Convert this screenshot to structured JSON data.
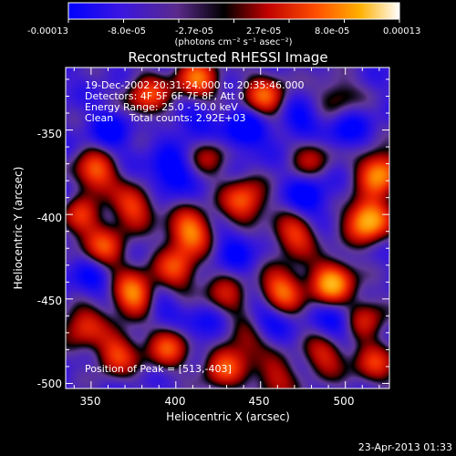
{
  "chart_data": {
    "type": "heatmap",
    "title": "Reconstructed RHESSI Image",
    "xlabel": "Heliocentric X (arcsec)",
    "ylabel": "Heliocentric Y (arcsec)",
    "xlim": [
      335,
      526
    ],
    "ylim": [
      -503,
      -313
    ],
    "x_ticks": [
      350,
      400,
      450,
      500
    ],
    "y_ticks": [
      -350,
      -400,
      -450,
      -500
    ],
    "colorbar": {
      "ticks": [
        "-0.00013",
        "-8.0e-05",
        "-2.7e-05",
        "2.7e-05",
        "8.0e-05",
        "0.00013"
      ],
      "unit": "(photons cm⁻² s⁻¹ asec⁻²)",
      "range": [
        -0.00013,
        0.00013
      ]
    },
    "annotations": [
      "19-Dec-2002 20:31:24.000 to 20:35:46.000",
      "Detectors: 4F 5F 6F 7F 8F, Att 0",
      "Energy Range: 25.0 - 50.0 keV",
      "Clean     Total counts: 2.92E+03"
    ],
    "peak_label": "Position of Peak = [513,-403]",
    "peak": [
      513,
      -403
    ],
    "sources": [
      {
        "x": 513,
        "y": -403,
        "v": 1.0
      },
      {
        "x": 520,
        "y": -375,
        "v": 0.85
      },
      {
        "x": 492,
        "y": -440,
        "v": 0.9
      },
      {
        "x": 462,
        "y": -445,
        "v": 0.75
      },
      {
        "x": 470,
        "y": -412,
        "v": 0.6
      },
      {
        "x": 440,
        "y": -392,
        "v": 0.7
      },
      {
        "x": 452,
        "y": -330,
        "v": 0.65
      },
      {
        "x": 412,
        "y": -320,
        "v": 0.7
      },
      {
        "x": 383,
        "y": -330,
        "v": 0.6
      },
      {
        "x": 352,
        "y": -375,
        "v": 0.7
      },
      {
        "x": 342,
        "y": -400,
        "v": 0.65
      },
      {
        "x": 358,
        "y": -420,
        "v": 0.6
      },
      {
        "x": 375,
        "y": -395,
        "v": 0.6
      },
      {
        "x": 408,
        "y": -410,
        "v": 0.8
      },
      {
        "x": 400,
        "y": -432,
        "v": 0.6
      },
      {
        "x": 375,
        "y": -447,
        "v": 0.85
      },
      {
        "x": 345,
        "y": -465,
        "v": 0.55
      },
      {
        "x": 365,
        "y": -482,
        "v": 0.6
      },
      {
        "x": 395,
        "y": -478,
        "v": 0.6
      },
      {
        "x": 428,
        "y": -490,
        "v": 0.6
      },
      {
        "x": 442,
        "y": -473,
        "v": 0.45
      },
      {
        "x": 428,
        "y": -450,
        "v": 0.5
      },
      {
        "x": 488,
        "y": -483,
        "v": 0.5
      },
      {
        "x": 510,
        "y": -462,
        "v": 0.55
      },
      {
        "x": 517,
        "y": -488,
        "v": 0.5
      },
      {
        "x": 480,
        "y": -365,
        "v": 0.4
      },
      {
        "x": 495,
        "y": -330,
        "v": 0.35
      },
      {
        "x": 420,
        "y": -365,
        "v": 0.35
      },
      {
        "x": 458,
        "y": -497,
        "v": 0.45
      }
    ],
    "dips": [
      {
        "x": 440,
        "y": -350,
        "v": 0.45
      },
      {
        "x": 396,
        "y": -375,
        "v": 0.4
      },
      {
        "x": 362,
        "y": -350,
        "v": 0.3
      },
      {
        "x": 478,
        "y": -390,
        "v": 0.35
      },
      {
        "x": 452,
        "y": -462,
        "v": 0.35
      },
      {
        "x": 497,
        "y": -464,
        "v": 0.4
      },
      {
        "x": 336,
        "y": -392,
        "v": 0.3
      },
      {
        "x": 350,
        "y": -438,
        "v": 0.3
      },
      {
        "x": 420,
        "y": -465,
        "v": 0.35
      },
      {
        "x": 390,
        "y": -455,
        "v": 0.25
      },
      {
        "x": 473,
        "y": -345,
        "v": 0.3
      },
      {
        "x": 410,
        "y": -345,
        "v": 0.25
      },
      {
        "x": 500,
        "y": -350,
        "v": 0.3
      },
      {
        "x": 435,
        "y": -420,
        "v": 0.25
      }
    ]
  },
  "footer": {
    "timestamp": "23-Apr-2013 01:33"
  }
}
